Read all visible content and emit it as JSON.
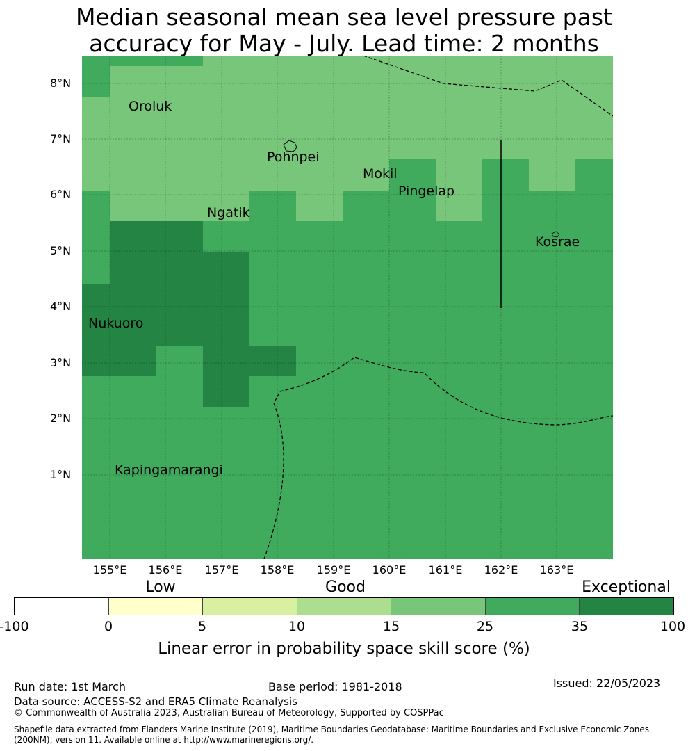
{
  "title": {
    "line1": "Median seasonal mean sea level pressure past",
    "line2": "accuracy for May - July. Lead time: 2 months"
  },
  "map": {
    "lat_labels": [
      "8°N",
      "7°N",
      "6°N",
      "5°N",
      "4°N",
      "3°N",
      "2°N",
      "1°N"
    ],
    "lon_labels": [
      "155°E",
      "156°E",
      "157°E",
      "158°E",
      "159°E",
      "160°E",
      "161°E",
      "162°E",
      "163°E"
    ],
    "places": [
      "Oroluk",
      "Pohnpei",
      "Mokil",
      "Pingelap",
      "Ngatik",
      "Kosrae",
      "Nukuoro",
      "Kapingamarangi"
    ],
    "colors": {
      "good_mid": "#78c679",
      "good_high": "#41ab5d",
      "exceptional": "#238443"
    }
  },
  "colorbar": {
    "categories": [
      "Low",
      "Good",
      "Exceptional"
    ],
    "ticks": [
      "-100",
      "0",
      "5",
      "10",
      "15",
      "25",
      "35",
      "100"
    ],
    "colors": [
      "#ffffff",
      "#ffffcc",
      "#d9f0a3",
      "#addd8e",
      "#78c679",
      "#41ab5d",
      "#238443"
    ],
    "title": "Linear error in probability space skill score (%)"
  },
  "footer": {
    "run_date": "Run date: 1st March",
    "base_period": "Base period: 1981-2018",
    "issued": "Issued: 22/05/2023",
    "data_source": "Data source: ACCESS-S2 and ERA5 Climate Reanalysis",
    "copyright": "© Commonwealth of Australia 2023, Australian Bureau of Meteorology, Supported by COSPPac",
    "shapefile": "Shapefile data extracted from Flanders Marine Institute (2019), Maritime Boundaries Geodatabase: Maritime Boundaries and Exclusive Economic Zones (200NM), version 11. Available online at http://www.marineregions.org/."
  }
}
